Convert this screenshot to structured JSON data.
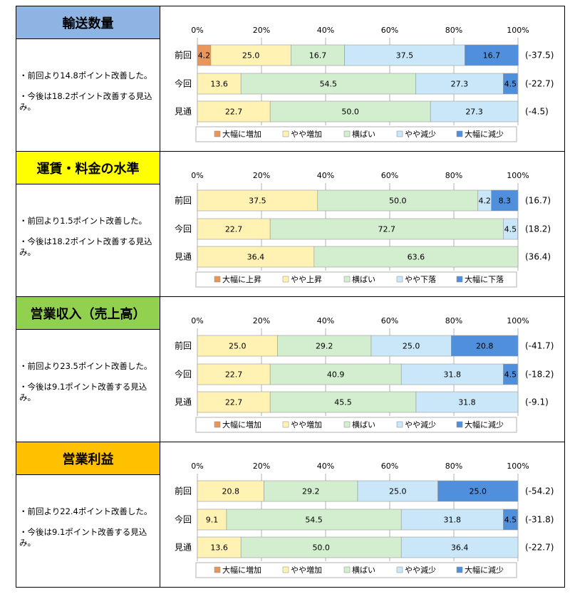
{
  "chart_data": [
    {
      "type": "bar",
      "title": "輸送数量",
      "title_color": "#8DB4E2",
      "comments": [
        "・前回より14.8ポイント改善した。",
        "・今後は18.2ポイント改善する見込み。"
      ],
      "ticks": [
        "0%",
        "20%",
        "40%",
        "60%",
        "80%",
        "100%"
      ],
      "categories": [
        "前回",
        "今回",
        "見通"
      ],
      "series": [
        {
          "name": "大幅に増加",
          "color": "#E9965A",
          "values": [
            4.2,
            0,
            0
          ]
        },
        {
          "name": "やや増加",
          "color": "#FFF2B3",
          "values": [
            25.0,
            13.6,
            22.7
          ]
        },
        {
          "name": "横ばい",
          "color": "#D3EDCF",
          "values": [
            16.7,
            54.5,
            50.0
          ]
        },
        {
          "name": "やや減少",
          "color": "#C9E7F8",
          "values": [
            37.5,
            27.3,
            27.3
          ]
        },
        {
          "name": "大幅に減少",
          "color": "#4F8FDB",
          "values": [
            16.7,
            4.5,
            0
          ]
        }
      ],
      "di": [
        "(-37.5)",
        "(-22.7)",
        "(-4.5)"
      ]
    },
    {
      "type": "bar",
      "title": "運賃・料金の水準",
      "title_color": "#FFFF00",
      "comments": [
        "・前回より1.5ポイント改善した。",
        "・今後は18.2ポイント改善する見込み。"
      ],
      "ticks": [
        "0%",
        "20%",
        "40%",
        "60%",
        "80%",
        "100%"
      ],
      "categories": [
        "前回",
        "今回",
        "見通"
      ],
      "series": [
        {
          "name": "大幅に上昇",
          "color": "#E9965A",
          "values": [
            0,
            0,
            0
          ]
        },
        {
          "name": "やや上昇",
          "color": "#FFF2B3",
          "values": [
            37.5,
            22.7,
            36.4
          ]
        },
        {
          "name": "横ばい",
          "color": "#D3EDCF",
          "values": [
            50.0,
            72.7,
            63.6
          ]
        },
        {
          "name": "やや下落",
          "color": "#C9E7F8",
          "values": [
            4.2,
            4.5,
            0
          ]
        },
        {
          "name": "大幅に下落",
          "color": "#4F8FDB",
          "values": [
            8.3,
            0,
            0
          ]
        }
      ],
      "di": [
        "(16.7)",
        "(18.2)",
        "(36.4)"
      ]
    },
    {
      "type": "bar",
      "title": "営業収入（売上高）",
      "title_color": "#92D050",
      "comments": [
        "・前回より23.5ポイント改善した。",
        "・今後は9.1ポイント改善する見込み。"
      ],
      "ticks": [
        "0%",
        "20%",
        "40%",
        "60%",
        "80%",
        "100%"
      ],
      "categories": [
        "前回",
        "今回",
        "見通"
      ],
      "series": [
        {
          "name": "大幅に増加",
          "color": "#E9965A",
          "values": [
            0,
            0,
            0
          ]
        },
        {
          "name": "やや増加",
          "color": "#FFF2B3",
          "values": [
            25.0,
            22.7,
            22.7
          ]
        },
        {
          "name": "横ばい",
          "color": "#D3EDCF",
          "values": [
            29.2,
            40.9,
            45.5
          ]
        },
        {
          "name": "やや減少",
          "color": "#C9E7F8",
          "values": [
            25.0,
            31.8,
            31.8
          ]
        },
        {
          "name": "大幅に減少",
          "color": "#4F8FDB",
          "values": [
            20.8,
            4.5,
            0
          ]
        }
      ],
      "di": [
        "(-41.7)",
        "(-18.2)",
        "(-9.1)"
      ]
    },
    {
      "type": "bar",
      "title": "営業利益",
      "title_color": "#FFC000",
      "comments": [
        "・前回より22.4ポイント改善した。",
        "・今後は9.1ポイント改善する見込み。"
      ],
      "ticks": [
        "0%",
        "20%",
        "40%",
        "60%",
        "80%",
        "100%"
      ],
      "categories": [
        "前回",
        "今回",
        "見通"
      ],
      "series": [
        {
          "name": "大幅に増加",
          "color": "#E9965A",
          "values": [
            0,
            0,
            0
          ]
        },
        {
          "name": "やや増加",
          "color": "#FFF2B3",
          "values": [
            20.8,
            9.1,
            13.6
          ]
        },
        {
          "name": "横ばい",
          "color": "#D3EDCF",
          "values": [
            29.2,
            54.5,
            50.0
          ]
        },
        {
          "name": "やや減少",
          "color": "#C9E7F8",
          "values": [
            25.0,
            31.8,
            36.4
          ]
        },
        {
          "name": "大幅に減少",
          "color": "#4F8FDB",
          "values": [
            25.0,
            4.5,
            0
          ]
        }
      ],
      "di": [
        "(-54.2)",
        "(-31.8)",
        "(-22.7)"
      ]
    }
  ]
}
